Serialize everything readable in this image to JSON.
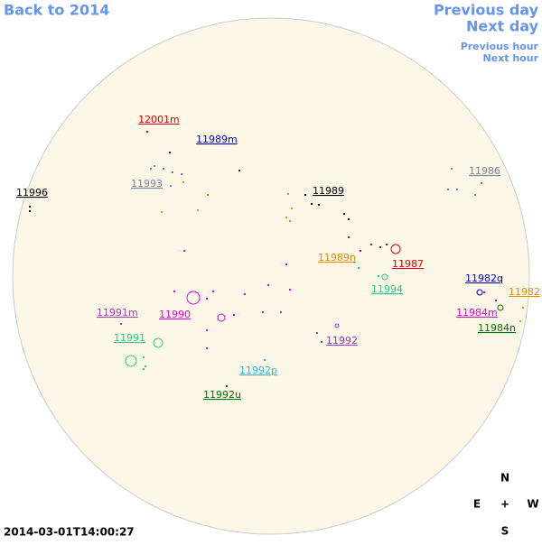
{
  "navigation": {
    "back_year": "Back to 2014",
    "previous_day": "Previous day",
    "next_day": "Next day",
    "previous_hour": "Previous hour",
    "next_hour": "Next hour"
  },
  "regions": [
    {
      "label": "12001m",
      "color": "#dd0000"
    },
    {
      "label": "11989m",
      "color": "#0000cc"
    },
    {
      "label": "11993",
      "color": "#778899"
    },
    {
      "label": "11996",
      "color": "#000000"
    },
    {
      "label": "11989",
      "color": "#000000"
    },
    {
      "label": "11986",
      "color": "#778899"
    },
    {
      "label": "11989n",
      "color": "#ee8800"
    },
    {
      "label": "11987",
      "color": "#dd0000"
    },
    {
      "label": "11994",
      "color": "#22cc88"
    },
    {
      "label": "11982q",
      "color": "#0000cc"
    },
    {
      "label": "11982",
      "color": "#ee8800"
    },
    {
      "label": "11991m",
      "color": "#a040c0"
    },
    {
      "label": "11990",
      "color": "#dd00dd"
    },
    {
      "label": "11984m",
      "color": "#dd00dd"
    },
    {
      "label": "11984n",
      "color": "#007700"
    },
    {
      "label": "11991",
      "color": "#22cc88"
    },
    {
      "label": "11992",
      "color": "#9040b0"
    },
    {
      "label": "11992p",
      "color": "#22bbdd"
    },
    {
      "label": "11992u",
      "color": "#007700"
    }
  ],
  "timestamp": "2014-03-01T14:00:27",
  "compass": {
    "north": "N",
    "east": "E",
    "center": "+",
    "west": "W",
    "south": "S"
  }
}
